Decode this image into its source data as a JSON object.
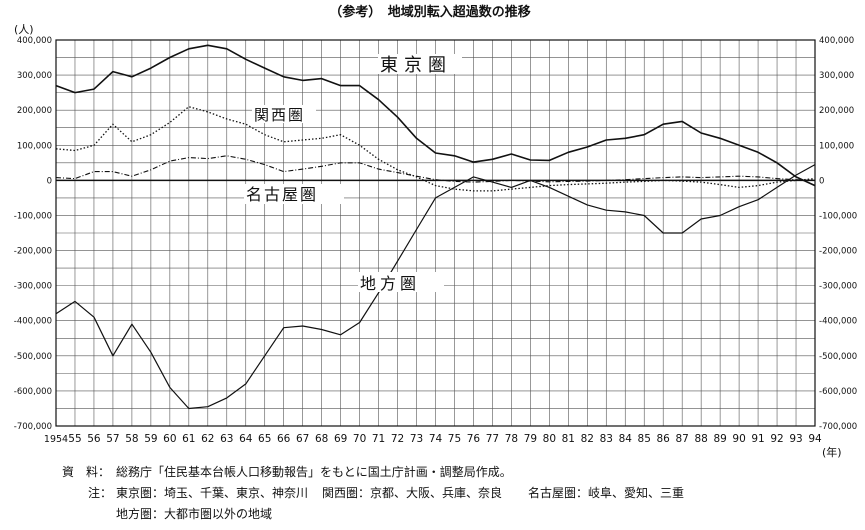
{
  "chart_data": {
    "type": "line",
    "title": "（参考）　地域別転入超過数の推移",
    "ylabel": "(人)",
    "xlabel": "(年)",
    "ylim": [
      -700000,
      400000
    ],
    "y_tick_labels_left": [
      "400,000",
      "300,000",
      "200,000",
      "100,000",
      "0",
      "-100,000",
      "-200,000",
      "-300,000",
      "-400,000",
      "-500,000",
      "-600,000",
      "-700,000"
    ],
    "y_tick_labels_right": [
      "400,000",
      "300,000",
      "200,000",
      "100,000",
      "0",
      "-100,000",
      "-200,000",
      "-300,000",
      "-400,000",
      "-500,000",
      "-600,000",
      "-700,000"
    ],
    "x_tick_labels": [
      "1954",
      "55",
      "56",
      "57",
      "58",
      "59",
      "60",
      "61",
      "62",
      "63",
      "64",
      "65",
      "66",
      "67",
      "68",
      "69",
      "70",
      "71",
      "72",
      "73",
      "74",
      "75",
      "76",
      "77",
      "78",
      "79",
      "80",
      "81",
      "82",
      "83",
      "84",
      "85",
      "86",
      "87",
      "88",
      "89",
      "90",
      "91",
      "92",
      "93",
      "94"
    ],
    "x": [
      1954,
      1955,
      1956,
      1957,
      1958,
      1959,
      1960,
      1961,
      1962,
      1963,
      1964,
      1965,
      1966,
      1967,
      1968,
      1969,
      1970,
      1971,
      1972,
      1973,
      1974,
      1975,
      1976,
      1977,
      1978,
      1979,
      1980,
      1981,
      1982,
      1983,
      1984,
      1985,
      1986,
      1987,
      1988,
      1989,
      1990,
      1991,
      1992,
      1993,
      1994
    ],
    "grid": true,
    "series": [
      {
        "name": "東京圏",
        "style": "solid",
        "width": 1.6,
        "values": [
          270000,
          250000,
          260000,
          310000,
          295000,
          320000,
          350000,
          375000,
          385000,
          375000,
          345000,
          320000,
          295000,
          285000,
          290000,
          270000,
          270000,
          230000,
          180000,
          120000,
          78000,
          70000,
          52000,
          60000,
          75000,
          58000,
          57000,
          80000,
          95000,
          115000,
          120000,
          130000,
          160000,
          168000,
          135000,
          120000,
          100000,
          80000,
          50000,
          10000,
          -15000
        ]
      },
      {
        "name": "関西圏",
        "style": "dotted",
        "width": 1.3,
        "values": [
          90000,
          85000,
          100000,
          160000,
          110000,
          130000,
          165000,
          210000,
          195000,
          175000,
          160000,
          130000,
          110000,
          115000,
          120000,
          130000,
          100000,
          60000,
          30000,
          10000,
          -15000,
          -25000,
          -30000,
          -30000,
          -25000,
          -20000,
          -15000,
          -12000,
          -10000,
          -8000,
          -5000,
          -3000,
          0,
          -2000,
          -5000,
          -12000,
          -20000,
          -15000,
          -5000,
          0,
          5000
        ]
      },
      {
        "name": "名古屋圏",
        "style": "dashdot",
        "width": 1.1,
        "values": [
          8000,
          5000,
          25000,
          25000,
          12000,
          30000,
          55000,
          65000,
          62000,
          70000,
          60000,
          45000,
          25000,
          32000,
          40000,
          50000,
          50000,
          32000,
          22000,
          12000,
          2000,
          -3000,
          -5000,
          -3000,
          0,
          -2000,
          -4000,
          -3000,
          -2000,
          0,
          2000,
          5000,
          8000,
          10000,
          8000,
          10000,
          12000,
          10000,
          5000,
          2000,
          0
        ]
      },
      {
        "name": "地方圏",
        "style": "solid",
        "width": 1.2,
        "values": [
          -380000,
          -345000,
          -390000,
          -500000,
          -410000,
          -490000,
          -590000,
          -650000,
          -645000,
          -620000,
          -580000,
          -500000,
          -420000,
          -415000,
          -425000,
          -440000,
          -405000,
          -320000,
          -230000,
          -140000,
          -50000,
          -20000,
          10000,
          -5000,
          -20000,
          0,
          -20000,
          -45000,
          -70000,
          -85000,
          -90000,
          -100000,
          -150000,
          -150000,
          -110000,
          -100000,
          -75000,
          -55000,
          -20000,
          15000,
          45000
        ]
      }
    ]
  },
  "series_labels": {
    "tokyo": "東京圏",
    "kansai": "関西圏",
    "nagoya": "名古屋圏",
    "chiho": "地方圏"
  },
  "notes": {
    "source_label": "資　料：",
    "source_text": "総務庁「住民基本台帳人口移動報告」をもとに国土庁計画・調整局作成。",
    "note_label": "注：",
    "tokyo_def": "東京圏：埼玉、千葉、東京、神奈川",
    "kansai_def": "関西圏：京都、大阪、兵庫、奈良",
    "nagoya_def": "名古屋圏：岐阜、愛知、三重",
    "chiho_def": "地方圏：大都市圏以外の地域"
  }
}
